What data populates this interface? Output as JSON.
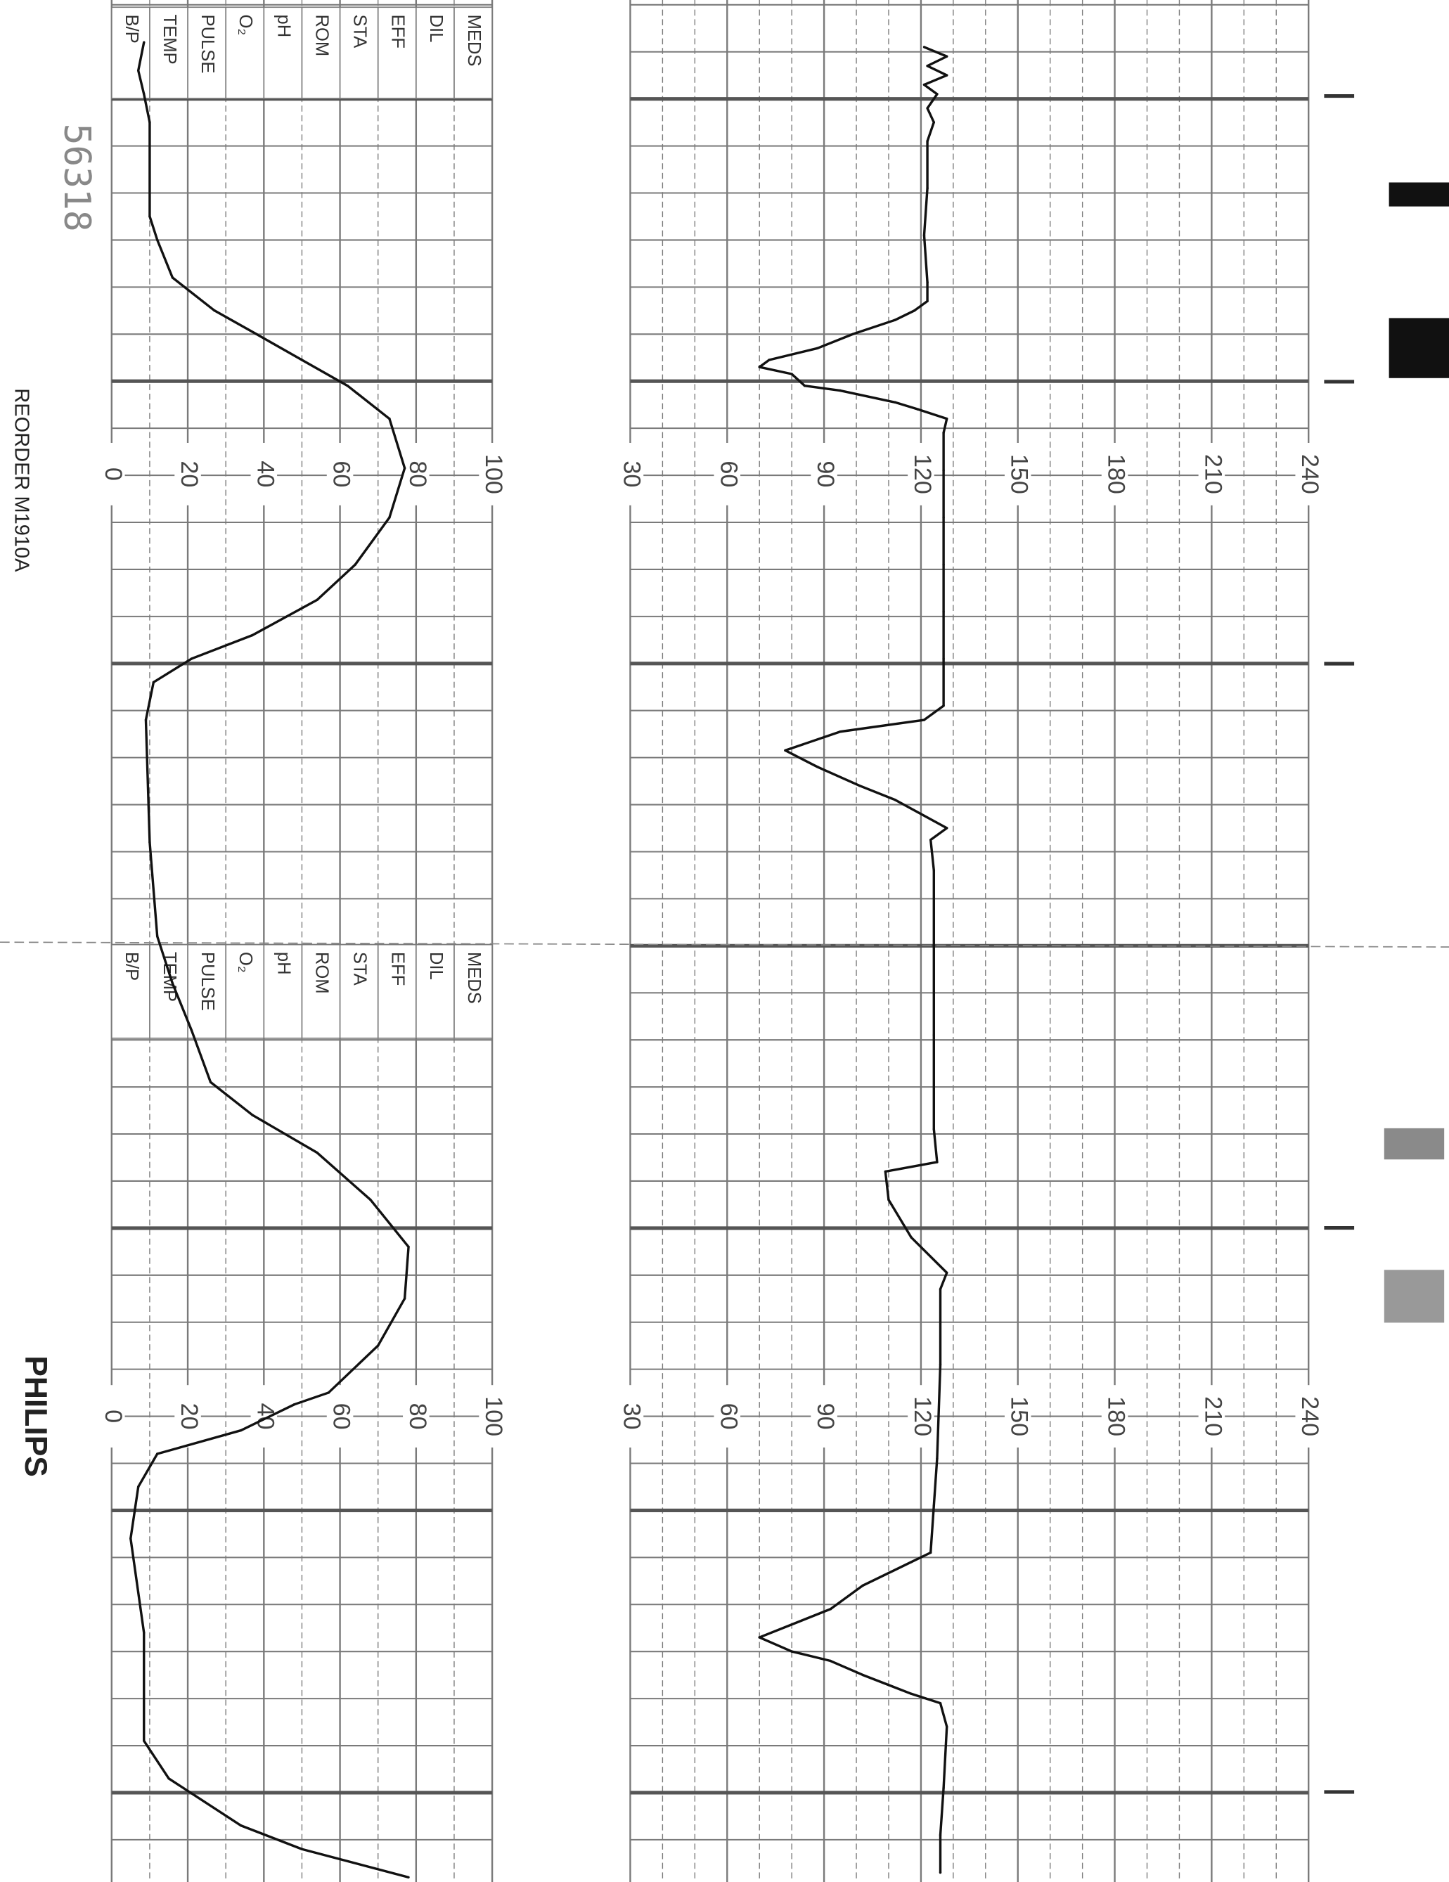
{
  "chart_data": [
    {
      "type": "line",
      "title": "",
      "xlabel": "",
      "ylabel": "",
      "x_unit_note": "strip position in minor grid divisions",
      "ylim": [
        30,
        240
      ],
      "y_ticks": [
        30,
        60,
        90,
        120,
        150,
        180,
        210,
        240
      ],
      "grid": true,
      "series": [
        {
          "color": "#111111",
          "points": [
            [
              1.0,
              121
            ],
            [
              1.2,
              128
            ],
            [
              1.4,
              122
            ],
            [
              1.6,
              128
            ],
            [
              1.8,
              121
            ],
            [
              2.0,
              125
            ],
            [
              2.3,
              122
            ],
            [
              2.6,
              124
            ],
            [
              3,
              122
            ],
            [
              4,
              122
            ],
            [
              5,
              121
            ],
            [
              6,
              122
            ],
            [
              6.4,
              122
            ],
            [
              6.6,
              118
            ],
            [
              6.8,
              112
            ],
            [
              7.1,
              99
            ],
            [
              7.4,
              88
            ],
            [
              7.65,
              73
            ],
            [
              7.8,
              70
            ],
            [
              7.95,
              80
            ],
            [
              8.2,
              84
            ],
            [
              8.3,
              95
            ],
            [
              8.55,
              112
            ],
            [
              8.7,
              119
            ],
            [
              8.9,
              128
            ],
            [
              9.2,
              127
            ],
            [
              10,
              127
            ],
            [
              11,
              127
            ],
            [
              12,
              127
            ],
            [
              13,
              127
            ],
            [
              14,
              127
            ],
            [
              15,
              127
            ],
            [
              15.3,
              121
            ],
            [
              15.55,
              95
            ],
            [
              15.95,
              78
            ],
            [
              16.3,
              88
            ],
            [
              16.7,
              101
            ],
            [
              17,
              112
            ],
            [
              17.6,
              128
            ],
            [
              17.85,
              123
            ],
            [
              18.5,
              124
            ],
            [
              20,
              124
            ],
            [
              22,
              124
            ],
            [
              24,
              124
            ],
            [
              24.7,
              125
            ],
            [
              24.9,
              109
            ],
            [
              25.5,
              110
            ],
            [
              26.3,
              117
            ],
            [
              27.05,
              128
            ],
            [
              27.4,
              126
            ],
            [
              29,
              126
            ],
            [
              31,
              125
            ],
            [
              32,
              124
            ],
            [
              33,
              123
            ],
            [
              33.2,
              117
            ],
            [
              33.7,
              102
            ],
            [
              34.2,
              92
            ],
            [
              34.8,
              70
            ],
            [
              35.1,
              80
            ],
            [
              35.3,
              92
            ],
            [
              35.6,
              102
            ],
            [
              36,
              117
            ],
            [
              36.2,
              126
            ],
            [
              36.7,
              128
            ],
            [
              38,
              127
            ],
            [
              39,
              126
            ],
            [
              39.8,
              126
            ]
          ]
        }
      ]
    },
    {
      "type": "line",
      "title": "",
      "xlabel": "",
      "ylabel": "",
      "ylim": [
        0,
        100
      ],
      "y_ticks": [
        0,
        20,
        40,
        60,
        80,
        100
      ],
      "grid": true,
      "series": [
        {
          "color": "#111111",
          "points": [
            [
              0.9,
              8.5
            ],
            [
              1.5,
              7
            ],
            [
              2.0,
              8.5
            ],
            [
              2.6,
              10
            ],
            [
              4.6,
              10
            ],
            [
              5.1,
              12
            ],
            [
              5.9,
              16
            ],
            [
              6.6,
              27
            ],
            [
              7.1,
              38
            ],
            [
              7.65,
              50
            ],
            [
              8.2,
              62
            ],
            [
              8.9,
              73
            ],
            [
              9.95,
              77
            ],
            [
              11,
              73
            ],
            [
              12,
              64
            ],
            [
              12.75,
              54
            ],
            [
              13.5,
              37
            ],
            [
              14,
              21
            ],
            [
              14.5,
              11
            ],
            [
              15.3,
              9
            ],
            [
              17.9,
              10
            ],
            [
              19.9,
              12
            ],
            [
              20.9,
              16
            ],
            [
              21.9,
              21
            ],
            [
              23,
              26
            ],
            [
              23.7,
              37
            ],
            [
              24.5,
              54
            ],
            [
              25.5,
              68
            ],
            [
              26.5,
              78
            ],
            [
              27.6,
              77
            ],
            [
              28.6,
              70
            ],
            [
              29.6,
              57
            ],
            [
              29.85,
              48
            ],
            [
              30.4,
              34
            ],
            [
              30.9,
              12
            ],
            [
              31.6,
              7
            ],
            [
              32.7,
              5
            ],
            [
              34.7,
              8.5
            ],
            [
              37,
              8.5
            ],
            [
              37.8,
              15
            ],
            [
              38.8,
              34
            ],
            [
              39.3,
              50
            ],
            [
              39.9,
              78
            ]
          ]
        }
      ]
    }
  ],
  "annotation_rows": [
    "MEDS",
    "DIL",
    "EFF",
    "STA",
    "ROM",
    "pH",
    "O₂",
    "PULSE",
    "TEMP",
    "B/P"
  ],
  "serial_number": "56318",
  "reorder_text": "REORDER  M1910A",
  "brand": "PHILIPS",
  "colors": {
    "grid": "#7a7a7a",
    "trace": "#111111",
    "paper": "#ffffff"
  }
}
